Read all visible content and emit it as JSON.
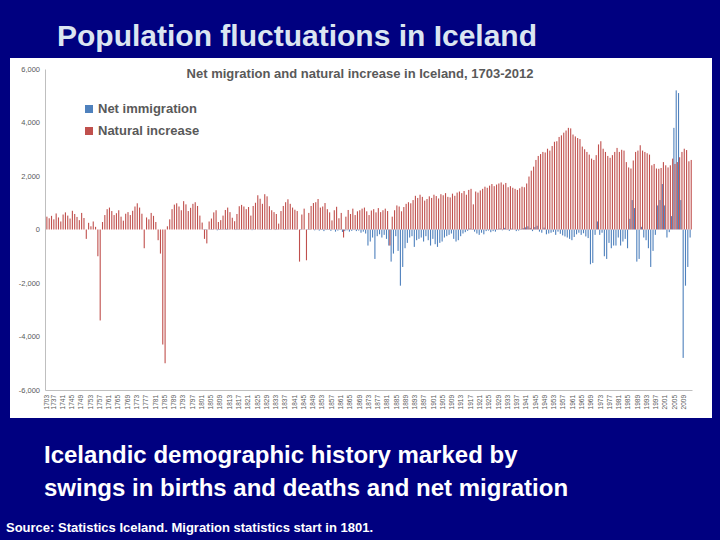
{
  "slide": {
    "title": "Population fluctuations in Iceland",
    "caption": [
      "Icelandic demographic history marked by",
      "swings in births and deaths and net migration"
    ],
    "source": "Source: Statistics Iceland. Migration statistics start in 1801."
  },
  "chart_data": {
    "type": "bar",
    "title": "Net migration and natural increase in Iceland, 1703-2012",
    "categories": [
      "1703",
      null,
      null,
      "1737",
      null,
      null,
      null,
      "1741",
      null,
      null,
      null,
      "1745",
      null,
      null,
      null,
      "1749",
      null,
      null,
      null,
      "1753",
      null,
      null,
      null,
      "1757",
      null,
      null,
      null,
      "1761",
      null,
      null,
      null,
      "1765",
      null,
      null,
      null,
      "1769",
      null,
      null,
      null,
      "1773",
      null,
      null,
      null,
      "1777",
      null,
      null,
      null,
      "1781",
      null,
      null,
      null,
      "1785",
      null,
      null,
      null,
      "1789",
      null,
      null,
      null,
      "1793",
      null,
      null,
      null,
      "1797",
      null,
      null,
      null,
      "1801",
      null,
      null,
      null,
      "1805",
      null,
      null,
      null,
      "1809",
      null,
      null,
      null,
      "1813",
      null,
      null,
      null,
      "1817",
      null,
      null,
      null,
      "1821",
      null,
      null,
      null,
      "1825",
      null,
      null,
      null,
      "1829",
      null,
      null,
      null,
      "1833",
      null,
      null,
      null,
      "1837",
      null,
      null,
      null,
      "1841",
      null,
      null,
      null,
      "1845",
      null,
      null,
      null,
      "1849",
      null,
      null,
      null,
      "1853",
      null,
      null,
      null,
      "1857",
      null,
      null,
      null,
      "1861",
      null,
      null,
      null,
      "1865",
      null,
      null,
      null,
      "1869",
      null,
      null,
      null,
      "1873",
      null,
      null,
      null,
      "1877",
      null,
      null,
      null,
      "1881",
      null,
      null,
      null,
      "1885",
      null,
      null,
      null,
      "1889",
      null,
      null,
      null,
      "1893",
      null,
      null,
      null,
      "1897",
      null,
      null,
      null,
      "1901",
      null,
      null,
      null,
      "1905",
      null,
      null,
      null,
      "1909",
      null,
      null,
      null,
      "1913",
      null,
      null,
      null,
      "1917",
      null,
      null,
      null,
      "1921",
      null,
      null,
      null,
      "1925",
      null,
      null,
      null,
      "1929",
      null,
      null,
      null,
      "1933",
      null,
      null,
      null,
      "1937",
      null,
      null,
      null,
      "1941",
      null,
      null,
      null,
      "1945",
      null,
      null,
      null,
      "1949",
      null,
      null,
      null,
      "1953",
      null,
      null,
      null,
      "1957",
      null,
      null,
      null,
      "1961",
      null,
      null,
      null,
      "1965",
      null,
      null,
      null,
      "1969",
      null,
      null,
      null,
      "1973",
      null,
      null,
      null,
      "1977",
      null,
      null,
      null,
      "1981",
      null,
      null,
      null,
      "1985",
      null,
      null,
      null,
      "1989",
      null,
      null,
      null,
      "1993",
      null,
      null,
      null,
      "1997",
      null,
      null,
      null,
      "2001",
      null,
      null,
      null,
      "2005",
      null,
      null,
      null,
      "2009",
      null,
      null,
      null
    ],
    "series": [
      {
        "name": "Net immigration",
        "color": "#4f81bd",
        "values": [
          null,
          null,
          null,
          null,
          null,
          null,
          null,
          null,
          null,
          null,
          null,
          null,
          null,
          null,
          null,
          null,
          null,
          null,
          null,
          null,
          null,
          null,
          null,
          null,
          null,
          null,
          null,
          null,
          null,
          null,
          null,
          null,
          null,
          null,
          null,
          null,
          null,
          null,
          null,
          null,
          null,
          null,
          null,
          null,
          null,
          null,
          null,
          null,
          null,
          null,
          null,
          null,
          null,
          null,
          null,
          null,
          null,
          null,
          null,
          null,
          null,
          null,
          null,
          null,
          null,
          null,
          null,
          0,
          10,
          -20,
          5,
          -10,
          15,
          0,
          -30,
          20,
          -15,
          10,
          25,
          -10,
          0,
          5,
          -20,
          15,
          10,
          -5,
          20,
          -10,
          5,
          -25,
          15,
          0,
          10,
          -15,
          5,
          20,
          -10,
          15,
          0,
          -20,
          10,
          5,
          -5,
          20,
          -15,
          10,
          5,
          -10,
          15,
          0,
          -20,
          10,
          5,
          -15,
          20,
          0,
          -30,
          10,
          -40,
          20,
          -60,
          -20,
          15,
          -50,
          -10,
          -80,
          -40,
          -20,
          -90,
          -60,
          -30,
          -80,
          -50,
          -20,
          -60,
          -40,
          -120,
          -80,
          -150,
          -600,
          -450,
          -300,
          -1100,
          -250,
          -180,
          -300,
          -200,
          -350,
          -600,
          -1200,
          -900,
          -250,
          -800,
          -2100,
          -1400,
          -700,
          -500,
          -300,
          -250,
          -650,
          -400,
          -350,
          -300,
          -450,
          -250,
          -400,
          -600,
          -350,
          -550,
          -650,
          -500,
          -450,
          -300,
          -250,
          -200,
          -150,
          -350,
          -450,
          -400,
          -250,
          -150,
          -100,
          -50,
          40,
          20,
          -80,
          -150,
          -200,
          -120,
          -180,
          -60,
          -40,
          -100,
          -60,
          -80,
          -20,
          40,
          -30,
          60,
          -20,
          -50,
          30,
          -10,
          -60,
          -40,
          20,
          50,
          80,
          120,
          60,
          -60,
          90,
          140,
          -80,
          -120,
          70,
          -180,
          -150,
          -120,
          -90,
          -200,
          -80,
          -160,
          -220,
          -260,
          -300,
          -350,
          -400,
          -280,
          -180,
          -120,
          -200,
          -140,
          -260,
          -320,
          -1300,
          -1250,
          -200,
          300,
          -200,
          -120,
          -1000,
          -1100,
          -500,
          -700,
          -600,
          -600,
          -300,
          -600,
          -450,
          -350,
          -700,
          400,
          1100,
          800,
          -1200,
          -1100,
          100,
          -300,
          -400,
          -700,
          -1400,
          -800,
          -200,
          900,
          1100,
          1700,
          900,
          -300,
          -100,
          500,
          3800,
          5200,
          5100,
          1100,
          -4800,
          -2100,
          -1400,
          -300
        ]
      },
      {
        "name": "Natural increase",
        "color": "#c0504d",
        "values": [
          480,
          420,
          510,
          380,
          600,
          450,
          300,
          560,
          640,
          520,
          410,
          700,
          580,
          470,
          350,
          620,
          430,
          -350,
          250,
          120,
          300,
          100,
          -1000,
          -3400,
          280,
          540,
          760,
          820,
          690,
          540,
          610,
          720,
          480,
          330,
          590,
          650,
          540,
          700,
          860,
          980,
          820,
          590,
          -700,
          450,
          380,
          620,
          510,
          280,
          -400,
          -900,
          -4300,
          -5000,
          120,
          380,
          760,
          930,
          980,
          860,
          720,
          1060,
          940,
          690,
          810,
          960,
          1020,
          880,
          520,
          260,
          -350,
          -520,
          300,
          410,
          640,
          720,
          280,
          350,
          520,
          730,
          820,
          650,
          440,
          310,
          580,
          870,
          920,
          860,
          760,
          840,
          520,
          880,
          1000,
          1280,
          1150,
          960,
          1320,
          1240,
          870,
          720,
          650,
          580,
          220,
          690,
          880,
          1020,
          1130,
          960,
          820,
          740,
          690,
          -1200,
          560,
          780,
          -1150,
          620,
          880,
          990,
          1020,
          1140,
          820,
          860,
          990,
          760,
          640,
          340,
          720,
          850,
          420,
          620,
          -300,
          480,
          730,
          580,
          780,
          540,
          680,
          720,
          780,
          820,
          680,
          540,
          710,
          760,
          640,
          800,
          650,
          720,
          780,
          690,
          -600,
          480,
          720,
          900,
          860,
          680,
          840,
          960,
          1020,
          980,
          1100,
          1260,
          1180,
          1300,
          1220,
          1080,
          1140,
          1240,
          1180,
          1300,
          1250,
          1160,
          1320,
          1280,
          1360,
          1220,
          1200,
          1340,
          1260,
          1380,
          1420,
          1360,
          1440,
          1300,
          1480,
          1520,
          940,
          1420,
          1380,
          1460,
          1520,
          1600,
          1560,
          1640,
          1700,
          1620,
          1680,
          1720,
          1760,
          1680,
          1740,
          1580,
          1620,
          1560,
          1520,
          1480,
          1540,
          1600,
          1580,
          1720,
          1980,
          2200,
          2350,
          2600,
          2750,
          2820,
          2900,
          2880,
          3020,
          2950,
          3120,
          3280,
          3300,
          3460,
          3520,
          3620,
          3700,
          3800,
          3780,
          3550,
          3480,
          3420,
          3380,
          3100,
          3000,
          2900,
          2800,
          2650,
          2600,
          2780,
          3180,
          3300,
          3020,
          2900,
          2750,
          2680,
          2780,
          2900,
          3050,
          2900,
          2980,
          2950,
          2520,
          2320,
          2280,
          2580,
          2900,
          2950,
          3150,
          2950,
          2900,
          2850,
          2800,
          2400,
          2450,
          2280,
          2270,
          2300,
          2520,
          2400,
          2320,
          2400,
          2650,
          2450,
          2520,
          2700,
          2900,
          3020,
          2970,
          2550,
          2600
        ]
      }
    ],
    "ylim": [
      -6000,
      6000
    ],
    "yticks": [
      {
        "value": -6000,
        "label": "-6,000"
      },
      {
        "value": -4000,
        "label": "-4,000"
      },
      {
        "value": -2000,
        "label": "-2,000"
      },
      0,
      {
        "value": 2000,
        "label": "2,000"
      },
      {
        "value": 4000,
        "label": "4,000"
      },
      {
        "value": 6000,
        "label": "6,000"
      }
    ],
    "grid": false,
    "legend": "upper left"
  }
}
